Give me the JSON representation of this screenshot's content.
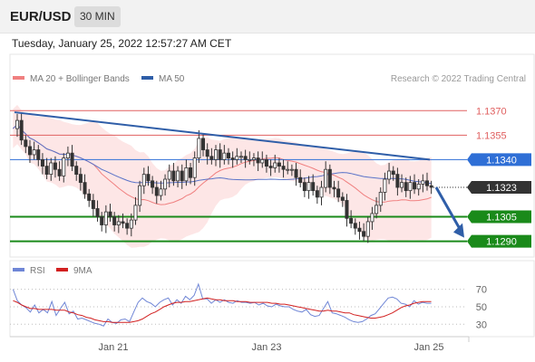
{
  "header": {
    "symbol": "EUR/USD",
    "timeframe": "30 MIN",
    "datetime": "Tuesday, January 25, 2022 12:57:27 AM CET"
  },
  "colors": {
    "up": "#333333",
    "down": "#333333",
    "bb_fill": "#fde3e3",
    "ma20": "#f08080",
    "ma50": "#5a73c8",
    "trend": "#2f5ea8",
    "resistance": "#e06060",
    "pivot": "#2f6fd6",
    "support": "#1a8a1a",
    "current": "#333333",
    "rsi": "#6f86d6",
    "rsi_ma": "#d22020",
    "grid": "#dddddd"
  },
  "chart_data": [
    {
      "type": "candlestick",
      "legend": [
        {
          "label": "MA 20 + Bollinger Bands",
          "color": "#f08080"
        },
        {
          "label": "MA 50",
          "color": "#2f5ea8"
        }
      ],
      "credit": "Research © 2022 Trading Central",
      "ylim": [
        1.1282,
        1.1384
      ],
      "x_ticks": [
        "Jan 21",
        "Jan 23",
        "Jan 25"
      ],
      "levels": [
        {
          "value": "1.1370",
          "kind": "resistance"
        },
        {
          "value": "1.1355",
          "kind": "resistance"
        },
        {
          "value": "1.1340",
          "kind": "pivot"
        },
        {
          "value": "1.1323",
          "kind": "current"
        },
        {
          "value": "1.1305",
          "kind": "support"
        },
        {
          "value": "1.1290",
          "kind": "support"
        }
      ],
      "trendline": {
        "start": 1.1369,
        "end": 1.134
      },
      "forecast_target": 1.129,
      "closes": [
        1.1359,
        1.1364,
        1.1352,
        1.1348,
        1.1343,
        1.1346,
        1.134,
        1.1336,
        1.1331,
        1.1338,
        1.1334,
        1.133,
        1.1341,
        1.1344,
        1.1336,
        1.1331,
        1.1326,
        1.1319,
        1.1315,
        1.131,
        1.1305,
        1.13,
        1.1308,
        1.1305,
        1.13,
        1.1302,
        1.1301,
        1.1298,
        1.1303,
        1.1312,
        1.1324,
        1.1331,
        1.1327,
        1.1323,
        1.1318,
        1.1322,
        1.1328,
        1.1333,
        1.1327,
        1.1333,
        1.1327,
        1.1335,
        1.1329,
        1.1341,
        1.1353,
        1.1346,
        1.1342,
        1.134,
        1.1346,
        1.134,
        1.1344,
        1.1341,
        1.134,
        1.1342,
        1.1342,
        1.134,
        1.134,
        1.1341,
        1.1338,
        1.134,
        1.1336,
        1.1335,
        1.1338,
        1.1336,
        1.1334,
        1.1334,
        1.1334,
        1.1329,
        1.1326,
        1.1321,
        1.1326,
        1.1321,
        1.1317,
        1.1323,
        1.1334,
        1.1323,
        1.1322,
        1.1317,
        1.1315,
        1.1304,
        1.1301,
        1.1298,
        1.1296,
        1.1293,
        1.1302,
        1.1307,
        1.1312,
        1.132,
        1.1328,
        1.1333,
        1.1331,
        1.1323,
        1.1326,
        1.1321,
        1.1326,
        1.1322,
        1.1325,
        1.1327,
        1.1324,
        1.1323
      ]
    },
    {
      "type": "line",
      "legend": [
        {
          "label": "RSI",
          "color": "#6f86d6"
        },
        {
          "label": "9MA",
          "color": "#d22020"
        }
      ],
      "ylim": [
        22,
        80
      ],
      "y_ticks": [
        "70",
        "50",
        "30"
      ],
      "series": [
        {
          "name": "RSI",
          "values": [
            70,
            57,
            52,
            49,
            44,
            52,
            43,
            47,
            43,
            56,
            40,
            48,
            55,
            42,
            45,
            36,
            37,
            35,
            33,
            31,
            30,
            28,
            36,
            32,
            31,
            35,
            36,
            33,
            44,
            55,
            60,
            56,
            54,
            50,
            55,
            58,
            60,
            52,
            58,
            54,
            62,
            58,
            63,
            76,
            59,
            59,
            54,
            58,
            55,
            58,
            55,
            54,
            57,
            55,
            55,
            54,
            55,
            52,
            54,
            51,
            50,
            53,
            51,
            50,
            50,
            47,
            45,
            44,
            47,
            41,
            39,
            40,
            48,
            56,
            43,
            42,
            40,
            38,
            35,
            33,
            32,
            33,
            36,
            40,
            42,
            48,
            54,
            60,
            61,
            59,
            54,
            53,
            50,
            57,
            53,
            55,
            54,
            54
          ]
        },
        {
          "name": "9MA",
          "values": [
            57,
            55,
            52,
            50,
            48,
            48,
            47,
            47,
            47,
            47,
            46,
            46,
            46,
            44,
            43,
            41,
            40,
            38,
            37,
            35,
            34,
            33,
            33,
            32,
            32,
            32,
            32,
            32,
            33,
            34,
            36,
            39,
            42,
            44,
            47,
            50,
            52,
            54,
            55,
            55,
            56,
            56,
            57,
            58,
            59,
            60,
            59,
            58,
            58,
            57,
            57,
            57,
            56,
            56,
            56,
            55,
            55,
            55,
            55,
            55,
            54,
            54,
            53,
            53,
            52,
            51,
            50,
            49,
            48,
            47,
            46,
            45,
            45,
            46,
            45,
            45,
            44,
            43,
            43,
            41,
            40,
            39,
            38,
            37,
            37,
            38,
            39,
            41,
            43,
            46,
            49,
            51,
            52,
            54,
            55,
            56,
            56,
            56
          ]
        }
      ]
    }
  ]
}
